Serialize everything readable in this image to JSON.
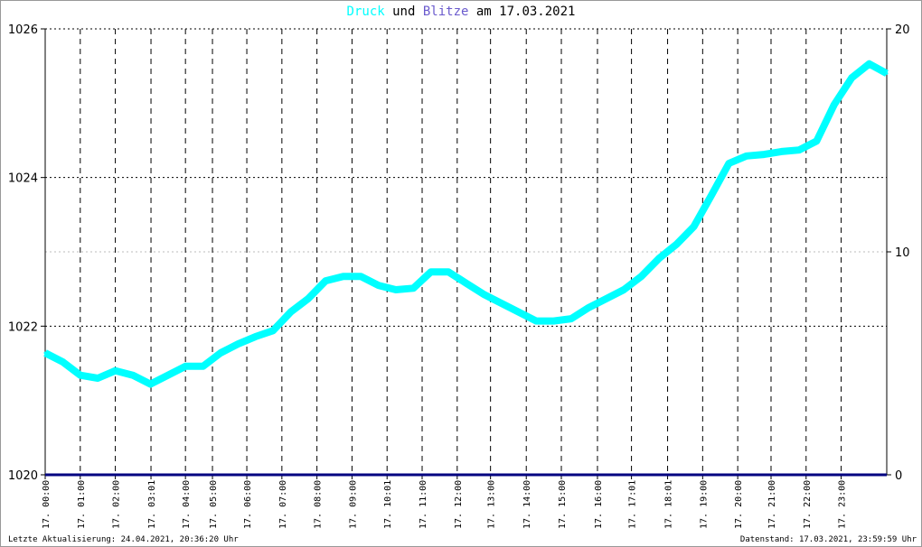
{
  "title": {
    "part1": "Druck",
    "part2": " und ",
    "part3": "Blitze",
    "part4": " am 17.03.2021"
  },
  "colors": {
    "pressure": "#00ffff",
    "lightning": "#6a5acd",
    "axis": "#000080"
  },
  "footer": {
    "left": "Letzte Aktualisierung: 24.04.2021, 20:36:20 Uhr",
    "right": "Datenstand: 17.03.2021, 23:59:59 Uhr"
  },
  "chart_data": {
    "type": "line",
    "title": "Druck und Blitze am 17.03.2021",
    "y_left": {
      "range": [
        1020,
        1026
      ],
      "ticks": [
        "1020",
        "1022",
        "1024",
        "1026"
      ]
    },
    "y_right": {
      "range": [
        0,
        20
      ],
      "ticks": [
        "0",
        "10",
        "20"
      ]
    },
    "x_ticks": [
      "17. 00:00",
      "17. 01:00",
      "17. 02:00",
      "17. 03:01",
      "17. 04:00",
      "17. 05:00",
      "17. 06:00",
      "17. 07:00",
      "17. 08:00",
      "17. 09:00",
      "17. 10:01",
      "17. 11:00",
      "17. 12:00",
      "17. 13:00",
      "17. 14:00",
      "17. 15:00",
      "17. 16:00",
      "17. 17:01",
      "17. 18:01",
      "17. 19:00",
      "17. 20:00",
      "17. 21:00",
      "17. 22:00",
      "17. 23:00"
    ],
    "x_tick_hours": [
      0,
      1,
      2,
      3.017,
      4,
      4.77,
      5.75,
      6.75,
      7.75,
      8.75,
      9.75,
      10.75,
      11.75,
      12.7,
      13.72,
      14.72,
      15.75,
      16.72,
      17.75,
      18.75,
      19.75,
      20.7,
      21.7,
      22.7
    ],
    "grid": true,
    "series": [
      {
        "name": "Druck",
        "axis": "left",
        "x_hours": [
          0,
          0.5,
          1,
          1.5,
          2,
          2.5,
          3,
          3.5,
          4,
          4.5,
          5,
          5.5,
          6,
          6.5,
          7,
          7.5,
          8,
          8.5,
          9,
          9.5,
          10,
          10.5,
          11,
          11.5,
          12,
          12.5,
          13,
          13.5,
          14,
          14.5,
          15,
          15.5,
          16,
          16.5,
          17,
          17.5,
          18,
          18.5,
          19,
          19.5,
          20,
          20.5,
          21,
          21.5,
          22,
          22.5,
          23,
          23.5,
          24
        ],
        "values": [
          1021.64,
          1021.52,
          1021.34,
          1021.3,
          1021.4,
          1021.34,
          1021.22,
          1021.34,
          1021.46,
          1021.46,
          1021.64,
          1021.76,
          1021.86,
          1021.94,
          1022.19,
          1022.37,
          1022.61,
          1022.67,
          1022.67,
          1022.55,
          1022.49,
          1022.51,
          1022.73,
          1022.73,
          1022.58,
          1022.43,
          1022.31,
          1022.19,
          1022.07,
          1022.07,
          1022.1,
          1022.25,
          1022.37,
          1022.49,
          1022.67,
          1022.91,
          1023.1,
          1023.34,
          1023.76,
          1024.19,
          1024.29,
          1024.31,
          1024.35,
          1024.37,
          1024.49,
          1024.98,
          1025.34,
          1025.53,
          1025.4
        ]
      },
      {
        "name": "Blitze",
        "axis": "right",
        "values": []
      }
    ]
  }
}
